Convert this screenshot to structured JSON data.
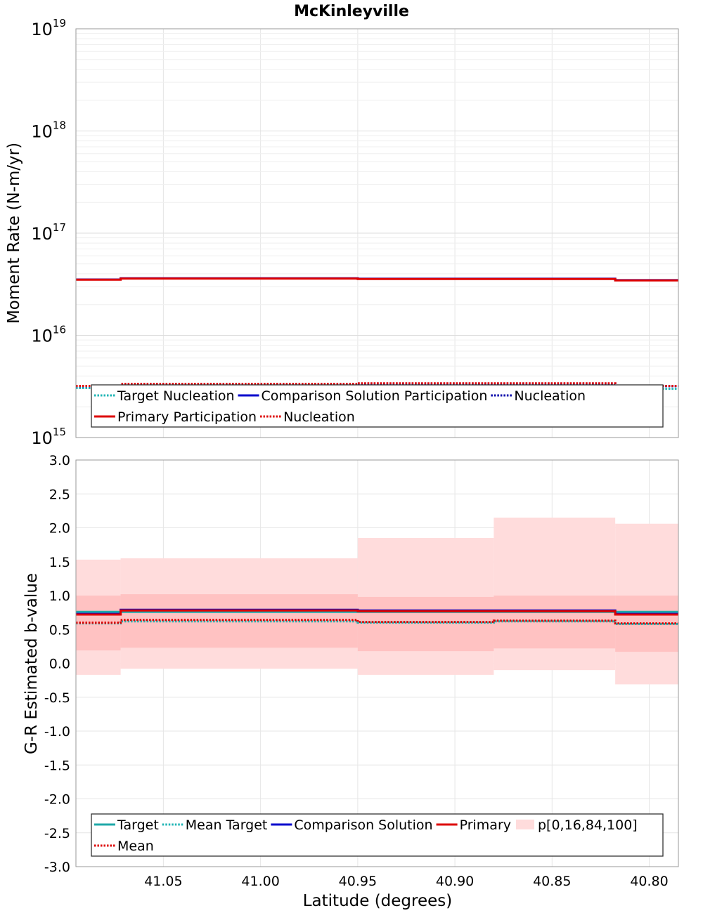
{
  "chart_data": [
    {
      "type": "line",
      "title": "McKinleyville",
      "ylabel": "Moment Rate (N-m/yr)",
      "yscale": "log",
      "ylim": [
        1000000000000000.0,
        1e+19
      ],
      "yticks": [
        {
          "base": "10",
          "exp": "15"
        },
        {
          "base": "10",
          "exp": "16"
        },
        {
          "base": "10",
          "exp": "17"
        },
        {
          "base": "10",
          "exp": "18"
        },
        {
          "base": "10",
          "exp": "19"
        }
      ],
      "xlim": [
        41.095,
        40.785
      ],
      "x_reversed": true,
      "grid": true,
      "segments": [
        {
          "x_start": 41.095,
          "x_end": 41.072
        },
        {
          "x_start": 41.072,
          "x_end": 40.95
        },
        {
          "x_start": 40.95,
          "x_end": 40.88
        },
        {
          "x_start": 40.88,
          "x_end": 40.8175
        },
        {
          "x_start": 40.8175,
          "x_end": 40.785
        }
      ],
      "series": [
        {
          "name": "Target Nucleation",
          "style": "dotted",
          "color": "#1fb5b5",
          "values": [
            3050000000000000.0,
            3100000000000000.0,
            3100000000000000.0,
            3100000000000000.0,
            3000000000000000.0
          ]
        },
        {
          "name": "Comparison Solution Participation",
          "style": "solid",
          "color": "#0000cc",
          "values": [
            3.52e+16,
            3.62e+16,
            3.58e+16,
            3.58e+16,
            3.47e+16
          ]
        },
        {
          "name": "Nucleation",
          "style": "dotted",
          "color": "#0000aa",
          "values": [
            3180000000000000.0,
            3330000000000000.0,
            3380000000000000.0,
            3380000000000000.0,
            3180000000000000.0
          ]
        },
        {
          "name": "Primary Participation",
          "style": "solid",
          "color": "#dd0000",
          "values": [
            3.5e+16,
            3.6e+16,
            3.56e+16,
            3.56e+16,
            3.45e+16
          ]
        },
        {
          "name": "Nucleation",
          "style": "dotted",
          "color": "#dd0000",
          "values": [
            3200000000000000.0,
            3350000000000000.0,
            3400000000000000.0,
            3400000000000000.0,
            3200000000000000.0
          ]
        }
      ],
      "legend": {
        "placement": "bottom",
        "rows": [
          [
            {
              "label": "Target Nucleation",
              "style": "dotted",
              "color": "#1fb5b5"
            },
            {
              "label": "Comparison Solution Participation",
              "style": "solid",
              "color": "#0000cc"
            },
            {
              "label": "Nucleation",
              "style": "dotted",
              "color": "#0000aa"
            }
          ],
          [
            {
              "label": "Primary Participation",
              "style": "solid",
              "color": "#dd0000"
            },
            {
              "label": "Nucleation",
              "style": "dotted",
              "color": "#dd0000"
            }
          ]
        ]
      }
    },
    {
      "type": "line",
      "title": "",
      "xlabel": "Latitude (degrees)",
      "ylabel": "G-R Estimated b-value",
      "ylim": [
        -3.0,
        3.0
      ],
      "yticks": [
        "-3.0",
        "-2.5",
        "-2.0",
        "-1.5",
        "-1.0",
        "-0.5",
        "0.0",
        "0.5",
        "1.0",
        "1.5",
        "2.0",
        "2.5",
        "3.0"
      ],
      "xlim": [
        41.095,
        40.785
      ],
      "x_reversed": true,
      "xticks": [
        "41.05",
        "41.00",
        "40.95",
        "40.90",
        "40.85",
        "40.80"
      ],
      "grid": true,
      "segments": [
        {
          "x_start": 41.095,
          "x_end": 41.072
        },
        {
          "x_start": 41.072,
          "x_end": 40.95
        },
        {
          "x_start": 40.95,
          "x_end": 40.88
        },
        {
          "x_start": 40.88,
          "x_end": 40.8175
        },
        {
          "x_start": 40.8175,
          "x_end": 40.785
        }
      ],
      "bands": [
        {
          "name": "p[0,16,84,100]",
          "kind": "outer",
          "color": "#ffdcdc",
          "low": [
            -0.17,
            -0.08,
            -0.17,
            -0.1,
            -0.31
          ],
          "high": [
            1.53,
            1.55,
            1.85,
            2.15,
            2.06
          ]
        },
        {
          "name": "p[0,16,84,100]",
          "kind": "inner",
          "color": "#ffc2c2",
          "low": [
            0.19,
            0.23,
            0.18,
            0.22,
            0.17
          ],
          "high": [
            1.0,
            1.02,
            0.98,
            1.0,
            1.0
          ]
        }
      ],
      "series": [
        {
          "name": "Target",
          "style": "solid",
          "color": "#1fa8a8",
          "values": [
            0.76,
            0.76,
            0.76,
            0.76,
            0.76
          ]
        },
        {
          "name": "Mean Target",
          "style": "dotted",
          "color": "#1fb5b5",
          "values": [
            0.59,
            0.62,
            0.6,
            0.62,
            0.58
          ]
        },
        {
          "name": "Comparison Solution",
          "style": "solid",
          "color": "#0000cc",
          "values": [
            0.73,
            0.79,
            0.78,
            0.78,
            0.73
          ]
        },
        {
          "name": "Primary",
          "style": "solid",
          "color": "#dd0000",
          "values": [
            0.72,
            0.78,
            0.77,
            0.77,
            0.72
          ]
        },
        {
          "name": "Mean",
          "style": "dotted",
          "color": "#dd0000",
          "values": [
            0.6,
            0.64,
            0.61,
            0.63,
            0.59
          ]
        }
      ],
      "legend": {
        "placement": "bottom",
        "rows": [
          [
            {
              "label": "Target",
              "style": "solid",
              "color": "#1fa8a8"
            },
            {
              "label": "Mean Target",
              "style": "dotted",
              "color": "#1fb5b5"
            },
            {
              "label": "Comparison Solution",
              "style": "solid",
              "color": "#0000cc"
            },
            {
              "label": "Primary",
              "style": "solid",
              "color": "#dd0000"
            },
            {
              "label": "p[0,16,84,100]",
              "style": "patch",
              "color": "#ffdcdc"
            }
          ],
          [
            {
              "label": "Mean",
              "style": "dotted",
              "color": "#dd0000"
            }
          ]
        ]
      }
    }
  ]
}
